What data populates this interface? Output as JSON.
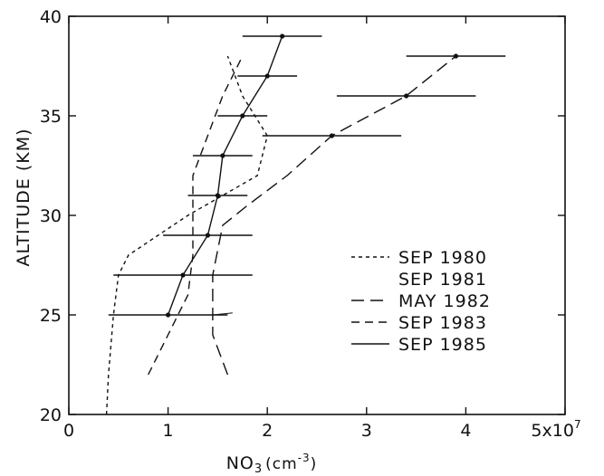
{
  "chart_data": {
    "type": "line",
    "title": "",
    "xlabel": "NO",
    "xlabel_sub": "3",
    "xlabel_unit": "(cm",
    "xlabel_unit_exp": "-3",
    "xlabel_unit_close": ")",
    "ylabel": "ALTITUDE (KM)",
    "xlim": [
      0,
      5
    ],
    "ylim": [
      20,
      40
    ],
    "x_ticks": [
      0,
      1,
      2,
      3,
      4,
      5
    ],
    "x_tick_labels": [
      "0",
      "1",
      "2",
      "3",
      "4",
      "5x10"
    ],
    "x_multiplier_exp": "7",
    "y_ticks": [
      20,
      25,
      30,
      35,
      40
    ],
    "y_tick_labels": [
      "20",
      "25",
      "30",
      "35",
      "40"
    ],
    "grid": false,
    "legend_position": "right",
    "series": [
      {
        "name": "SEP 1980",
        "style": "short-dash",
        "points": [
          [
            0.38,
            20
          ],
          [
            0.4,
            22
          ],
          [
            0.45,
            25
          ],
          [
            0.5,
            27
          ],
          [
            0.6,
            28
          ],
          [
            0.9,
            29
          ],
          [
            1.2,
            30
          ],
          [
            1.55,
            31
          ],
          [
            1.9,
            32
          ],
          [
            2.0,
            34
          ],
          [
            1.75,
            36
          ],
          [
            1.6,
            38
          ]
        ]
      },
      {
        "name": "SEP 1981",
        "style": "none",
        "points": [
          [
            1.45,
            25
          ],
          [
            1.65,
            25.1
          ]
        ]
      },
      {
        "name": "MAY 1982",
        "style": "long-dash",
        "points": [
          [
            1.6,
            22
          ],
          [
            1.45,
            24
          ],
          [
            1.45,
            27
          ],
          [
            1.55,
            29.5
          ],
          [
            1.8,
            30.5
          ],
          [
            2.2,
            32
          ],
          [
            2.65,
            34
          ],
          [
            3.4,
            36
          ],
          [
            3.9,
            38
          ]
        ],
        "markers": [
          [
            2.65,
            34
          ],
          [
            3.4,
            36
          ],
          [
            3.9,
            38
          ]
        ],
        "xerr": [
          0.7,
          0.7,
          0.5
        ]
      },
      {
        "name": "SEP 1983",
        "style": "medium-dash",
        "points": [
          [
            0.8,
            22
          ],
          [
            1.0,
            24
          ],
          [
            1.2,
            26
          ],
          [
            1.25,
            28
          ],
          [
            1.25,
            30
          ],
          [
            1.25,
            32
          ],
          [
            1.4,
            34
          ],
          [
            1.55,
            36
          ],
          [
            1.75,
            38
          ]
        ]
      },
      {
        "name": "SEP 1985",
        "style": "solid",
        "points": [
          [
            1.0,
            25
          ],
          [
            1.15,
            27
          ],
          [
            1.4,
            29
          ],
          [
            1.5,
            31
          ],
          [
            1.55,
            33
          ],
          [
            1.75,
            35
          ],
          [
            2.0,
            37
          ],
          [
            2.15,
            39
          ]
        ],
        "markers": [
          [
            1.0,
            25
          ],
          [
            1.15,
            27
          ],
          [
            1.4,
            29
          ],
          [
            1.5,
            31
          ],
          [
            1.55,
            33
          ],
          [
            1.75,
            35
          ],
          [
            2.0,
            37
          ],
          [
            2.15,
            39
          ]
        ],
        "xerr": [
          0.6,
          0.7,
          0.45,
          0.3,
          0.3,
          0.25,
          0.3,
          0.4
        ]
      }
    ]
  }
}
